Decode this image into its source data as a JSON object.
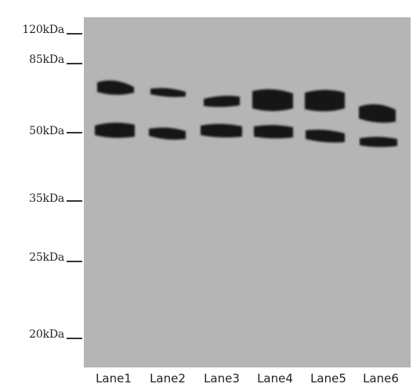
{
  "markers": [
    {
      "label": "120kDa"
    },
    {
      "label": "85kDa"
    },
    {
      "label": "50kDa"
    },
    {
      "label": "35kDa"
    },
    {
      "label": "25kDa"
    },
    {
      "label": "20kDa"
    }
  ],
  "lanes": [
    {
      "label": "Lane1"
    },
    {
      "label": "Lane2"
    },
    {
      "label": "Lane3"
    },
    {
      "label": "Lane4"
    },
    {
      "label": "Lane5"
    },
    {
      "label": "Lane6"
    }
  ],
  "colors": {
    "membrane": "#b5b5b5",
    "band": "#121212",
    "background": "#ffffff"
  }
}
